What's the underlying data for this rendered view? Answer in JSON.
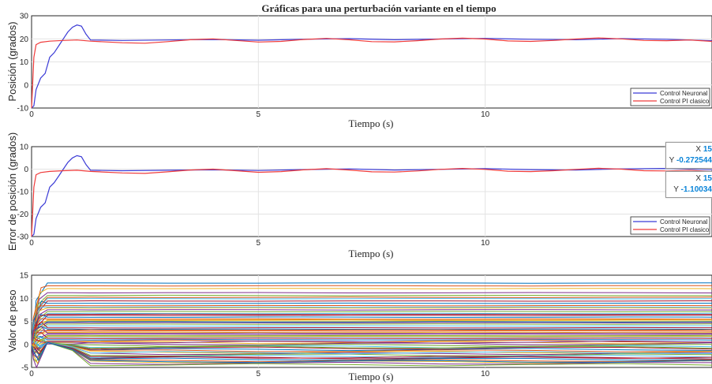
{
  "figure": {
    "title": "Gráficas para una perturbación variante en el tiempo",
    "xlabel": "Tiempo (s)"
  },
  "colors": {
    "neuronal": "#3b3bd6",
    "pi": "#ef3b3b",
    "grid": "#e3e3e3",
    "axis": "#262626"
  },
  "legend": {
    "items": [
      "Control Neuronal",
      "Control PI clasico"
    ]
  },
  "datatips": [
    {
      "x_label": "X",
      "x_value": "15",
      "y_label": "Y",
      "y_value": "-0.272544"
    },
    {
      "x_label": "X",
      "x_value": "15",
      "y_label": "Y",
      "y_value": "-1.10034"
    }
  ],
  "chart_data": [
    {
      "type": "line",
      "title": "Gráficas para una perturbación variante en el tiempo",
      "xlabel": "Tiempo (s)",
      "ylabel": "Posición (grados)",
      "xlim": [
        0,
        15
      ],
      "ylim": [
        -10,
        30
      ],
      "xticks": [
        0,
        5,
        10
      ],
      "yticks": [
        -10,
        0,
        10,
        20,
        30
      ],
      "grid": true,
      "legend_position": "bottom-right",
      "series": [
        {
          "name": "Control Neuronal",
          "x": [
            0,
            0.05,
            0.1,
            0.2,
            0.3,
            0.4,
            0.5,
            0.6,
            0.7,
            0.8,
            0.9,
            1.0,
            1.1,
            1.2,
            1.3,
            2,
            3,
            4,
            5,
            6,
            7,
            8,
            9,
            10,
            11,
            12,
            13,
            14,
            15
          ],
          "y": [
            -10,
            -9,
            -2,
            3,
            5,
            12,
            14,
            17,
            20,
            23,
            25,
            26,
            25.5,
            22,
            19.5,
            19.3,
            19.5,
            19.7,
            19.4,
            19.8,
            20.1,
            19.6,
            19.9,
            20.2,
            19.8,
            19.6,
            20.1,
            19.8,
            19.2
          ]
        },
        {
          "name": "Control PI clasico",
          "x": [
            0,
            0.05,
            0.1,
            0.2,
            0.4,
            0.7,
            1.0,
            1.3,
            2,
            2.5,
            3,
            3.5,
            4,
            4.5,
            5,
            5.5,
            6,
            6.5,
            7,
            7.5,
            8,
            8.5,
            9,
            9.5,
            10,
            10.5,
            11,
            11.5,
            12,
            12.5,
            13,
            13.5,
            14,
            14.5,
            15
          ],
          "y": [
            -10,
            12,
            17.5,
            18.5,
            19,
            19.3,
            19.5,
            19,
            18.3,
            18.1,
            18.8,
            19.6,
            20,
            19.3,
            18.6,
            18.9,
            19.7,
            20.2,
            19.6,
            18.8,
            18.7,
            19.2,
            19.9,
            20.3,
            19.9,
            19.1,
            18.9,
            19.3,
            19.9,
            20.4,
            20,
            19.3,
            19.2,
            19.5,
            18.9
          ]
        }
      ]
    },
    {
      "type": "line",
      "xlabel": "Tiempo (s)",
      "ylabel": "Error de posición (grados)",
      "xlim": [
        0,
        15
      ],
      "ylim": [
        -30,
        10
      ],
      "xticks": [
        0,
        5,
        10
      ],
      "yticks": [
        -30,
        -20,
        -10,
        0,
        10
      ],
      "grid": true,
      "legend_position": "bottom-right",
      "series": [
        {
          "name": "Control Neuronal",
          "x": [
            0,
            0.05,
            0.1,
            0.2,
            0.3,
            0.4,
            0.5,
            0.6,
            0.7,
            0.8,
            0.9,
            1.0,
            1.1,
            1.2,
            1.3,
            2,
            3,
            4,
            5,
            6,
            7,
            8,
            9,
            10,
            11,
            12,
            13,
            14,
            15
          ],
          "y": [
            -30,
            -29,
            -22,
            -17,
            -15,
            -8,
            -6,
            -3,
            0,
            3,
            5,
            6,
            5.5,
            2,
            -0.5,
            -0.7,
            -0.5,
            -0.3,
            -0.6,
            -0.2,
            0.1,
            -0.4,
            -0.1,
            0.2,
            -0.2,
            -0.4,
            0.1,
            0.3,
            -0.272544
          ]
        },
        {
          "name": "Control PI clasico",
          "x": [
            0,
            0.05,
            0.1,
            0.2,
            0.4,
            0.7,
            1.0,
            1.3,
            2,
            2.5,
            3,
            3.5,
            4,
            4.5,
            5,
            5.5,
            6,
            6.5,
            7,
            7.5,
            8,
            8.5,
            9,
            9.5,
            10,
            10.5,
            11,
            11.5,
            12,
            12.5,
            13,
            13.5,
            14,
            14.5,
            15
          ],
          "y": [
            -30,
            -8,
            -2.5,
            -1.5,
            -1,
            -0.7,
            -0.5,
            -1,
            -1.7,
            -1.9,
            -1.2,
            -0.4,
            0,
            -0.7,
            -1.4,
            -1.1,
            -0.3,
            0.2,
            -0.4,
            -1.2,
            -1.3,
            -0.8,
            -0.1,
            0.3,
            -0.1,
            -0.9,
            -1.1,
            -0.7,
            -0.1,
            0.4,
            0,
            -0.7,
            -0.8,
            -0.5,
            -1.10034
          ]
        }
      ]
    },
    {
      "type": "line",
      "xlabel": "Tiempo (s)",
      "ylabel": "Valor de peso",
      "xlim": [
        0,
        15
      ],
      "ylim": [
        -5,
        15
      ],
      "xticks": [
        0,
        5,
        10
      ],
      "yticks": [
        -5,
        0,
        5,
        10,
        15
      ],
      "grid": true,
      "series_count": 60,
      "final_values": [
        13.3,
        12.7,
        12.1,
        11.2,
        10.6,
        9.9,
        9.4,
        8.9,
        8.4,
        7.9,
        7.5,
        7.1,
        6.7,
        6.3,
        5.9,
        5.5,
        5.1,
        4.7,
        4.4,
        4.0,
        3.6,
        3.3,
        2.9,
        2.6,
        2.2,
        1.9,
        1.6,
        1.3,
        1.0,
        0.7,
        0.4,
        0.1,
        -0.2,
        -0.5,
        -0.8,
        -1.1,
        -1.4,
        -1.7,
        -2.0,
        -2.3,
        -2.6,
        -2.9,
        -3.2,
        -3.5,
        -3.8,
        -4.1,
        -4.4,
        8.1,
        6.5,
        4.9,
        3.1,
        1.7,
        0.5,
        -0.6,
        -1.8,
        -2.8,
        -3.7,
        10.2,
        5.3,
        2.4
      ]
    }
  ]
}
